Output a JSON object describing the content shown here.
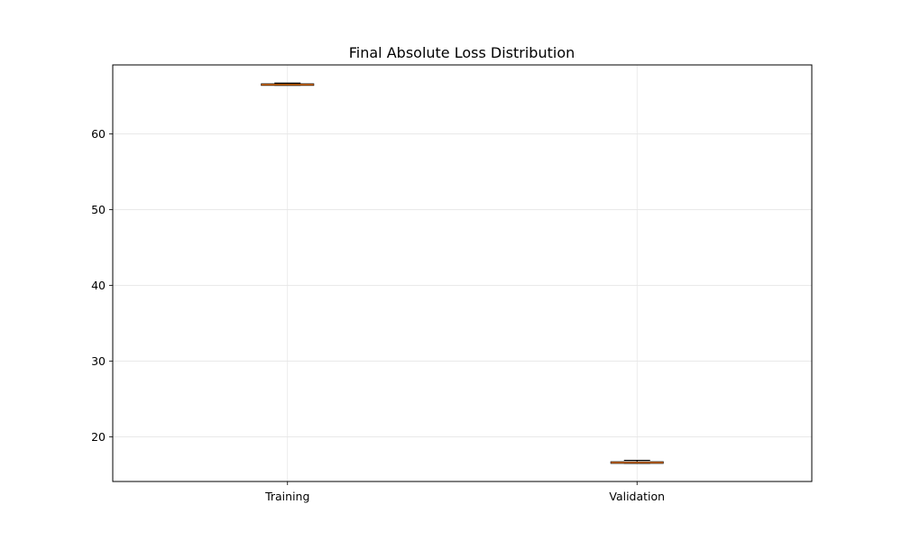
{
  "chart_data": {
    "type": "box",
    "title": "Final Absolute Loss Distribution",
    "xlabel": "",
    "ylabel": "",
    "categories": [
      "Training",
      "Validation"
    ],
    "boxes": [
      {
        "category": "Training",
        "whisker_low": 66.4,
        "q1": 66.4,
        "median": 66.5,
        "q3": 66.6,
        "whisker_high": 66.7
      },
      {
        "category": "Validation",
        "whisker_low": 16.5,
        "q1": 16.5,
        "median": 16.6,
        "q3": 16.7,
        "whisker_high": 16.9
      }
    ],
    "ylim": [
      14.1,
      69.1
    ],
    "yticks": [
      20,
      30,
      40,
      50,
      60
    ],
    "grid": true,
    "colors": {
      "box": "#000000",
      "median": "#ff7f0e",
      "grid": "#e6e6e6",
      "axes": "#000000"
    }
  }
}
